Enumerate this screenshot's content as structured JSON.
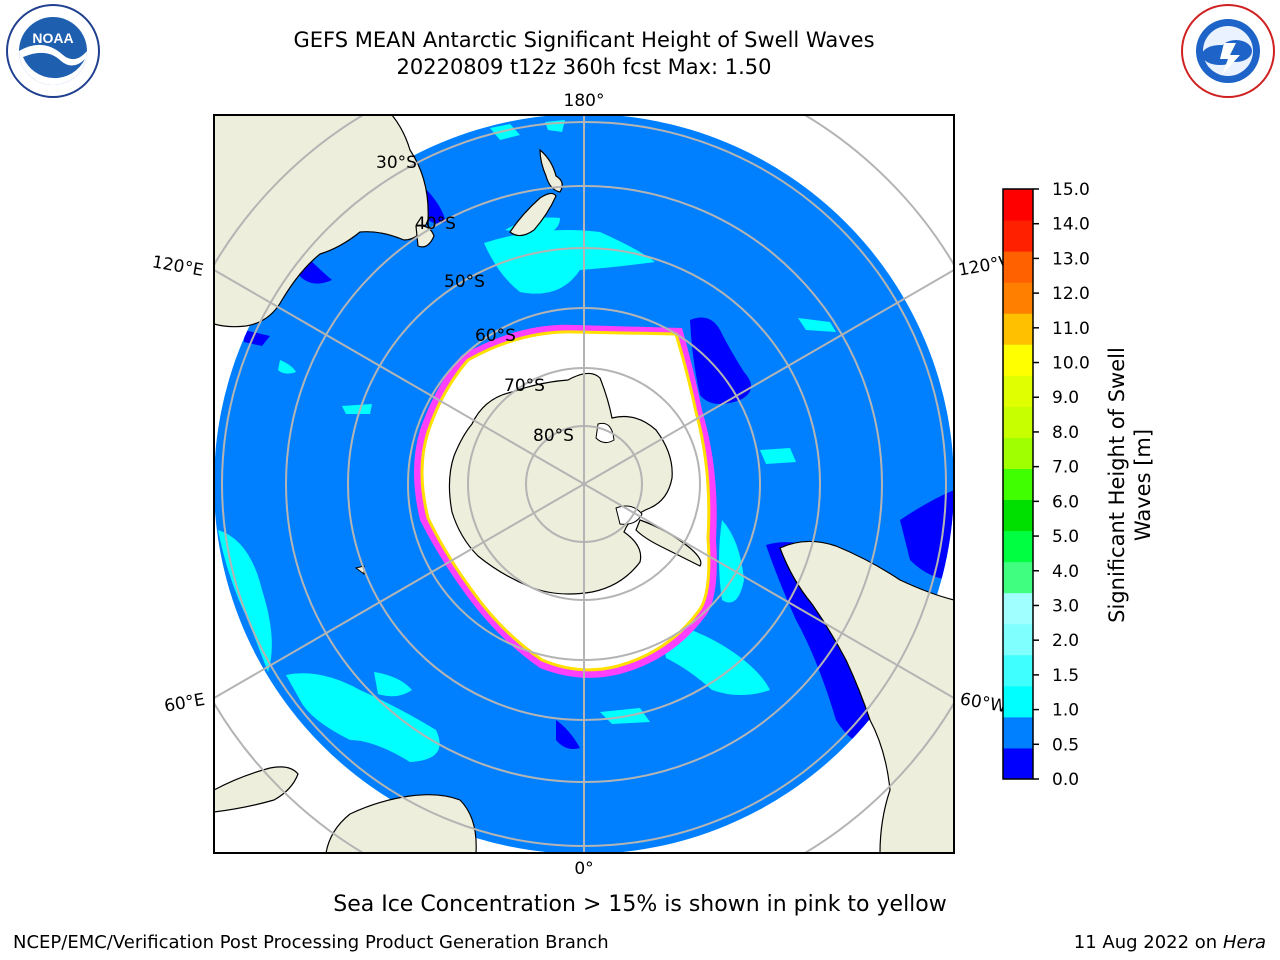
{
  "header": {
    "title_line1": "GEFS MEAN Antarctic Significant Height of Swell Waves",
    "title_line2": "20220809 t12z 360h fcst   Max: 1.50"
  },
  "logos": {
    "left": {
      "name": "noaa-logo",
      "text": "NOAA",
      "ring_text": "NATIONAL OCEANIC AND ATMOSPHERIC ADMINISTRATION · U.S. DEPARTMENT OF COMMERCE"
    },
    "right": {
      "name": "nws-logo",
      "ring_text": "NATIONAL WEATHER SERVICE"
    }
  },
  "chart_data": {
    "type": "heatmap",
    "projection": "south polar stereographic",
    "title": "GEFS MEAN Antarctic Significant Height of Swell Waves",
    "subtitle": "20220809 t12z 360h fcst   Max: 1.50",
    "max_value": 1.5,
    "longitude_labels": [
      "180°",
      "120°E",
      "120°W",
      "60°E",
      "60°W",
      "0°"
    ],
    "latitude_labels": [
      "30°S",
      "40°S",
      "50°S",
      "60°S",
      "70°S",
      "80°S"
    ],
    "latitude_circles": [
      30,
      40,
      50,
      60,
      70,
      80
    ],
    "meridians": [
      0,
      60,
      120,
      180,
      240,
      300
    ],
    "grid": true,
    "colorbar": {
      "label": "Significant Height of Swell Waves [m]",
      "ticks": [
        "0.0",
        "0.5",
        "1.0",
        "1.5",
        "2.0",
        "3.0",
        "4.0",
        "5.0",
        "6.0",
        "7.0",
        "8.0",
        "9.0",
        "10.0",
        "11.0",
        "12.0",
        "13.0",
        "14.0",
        "15.0"
      ],
      "colors": [
        "#0000ff",
        "#0080ff",
        "#00ffff",
        "#40ffff",
        "#80ffff",
        "#a0ffff",
        "#40ff80",
        "#00ff40",
        "#00e000",
        "#40ff00",
        "#a0ff00",
        "#c8ff00",
        "#e0ff00",
        "#ffff00",
        "#ffc000",
        "#ff8000",
        "#ff6000",
        "#ff2000",
        "#ff0000"
      ]
    },
    "field_colors": {
      "dominant": "#0080ff",
      "moderate": "#00ffff",
      "low": "#0000ff",
      "sea_ice": "#ffffff",
      "ice_edge_pink": "#ff40ff",
      "ice_edge_yellow": "#ffe000",
      "land": "#eeeedc"
    }
  },
  "footer": {
    "note": "Sea Ice Concentration > 15% is shown in pink to yellow",
    "credit": "NCEP/EMC/Verification Post Processing Product Generation Branch",
    "date": "11 Aug 2022 on",
    "machine": "Hera"
  }
}
